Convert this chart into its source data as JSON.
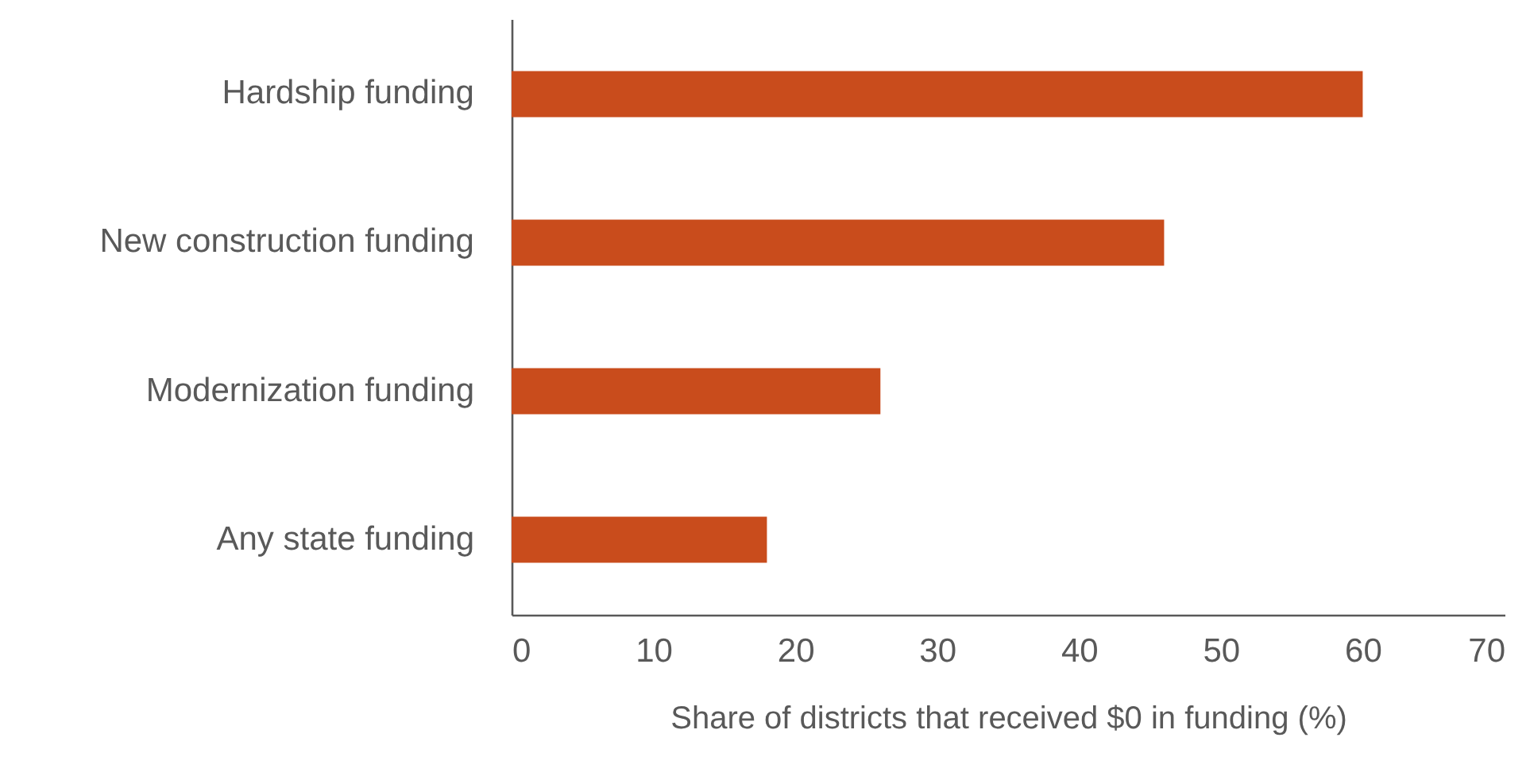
{
  "chart_data": {
    "type": "bar",
    "orientation": "horizontal",
    "xlabel": "Share of districts that received $0 in funding (%)",
    "categories": [
      "Hardship funding",
      "New construction funding",
      "Modernization funding",
      "Any state funding"
    ],
    "values": [
      60,
      46,
      26,
      18
    ],
    "color": "#c94c1c",
    "xlim": [
      0,
      70
    ],
    "xticks": [
      0,
      10,
      20,
      30,
      40,
      50,
      60,
      70
    ],
    "grid": false
  }
}
